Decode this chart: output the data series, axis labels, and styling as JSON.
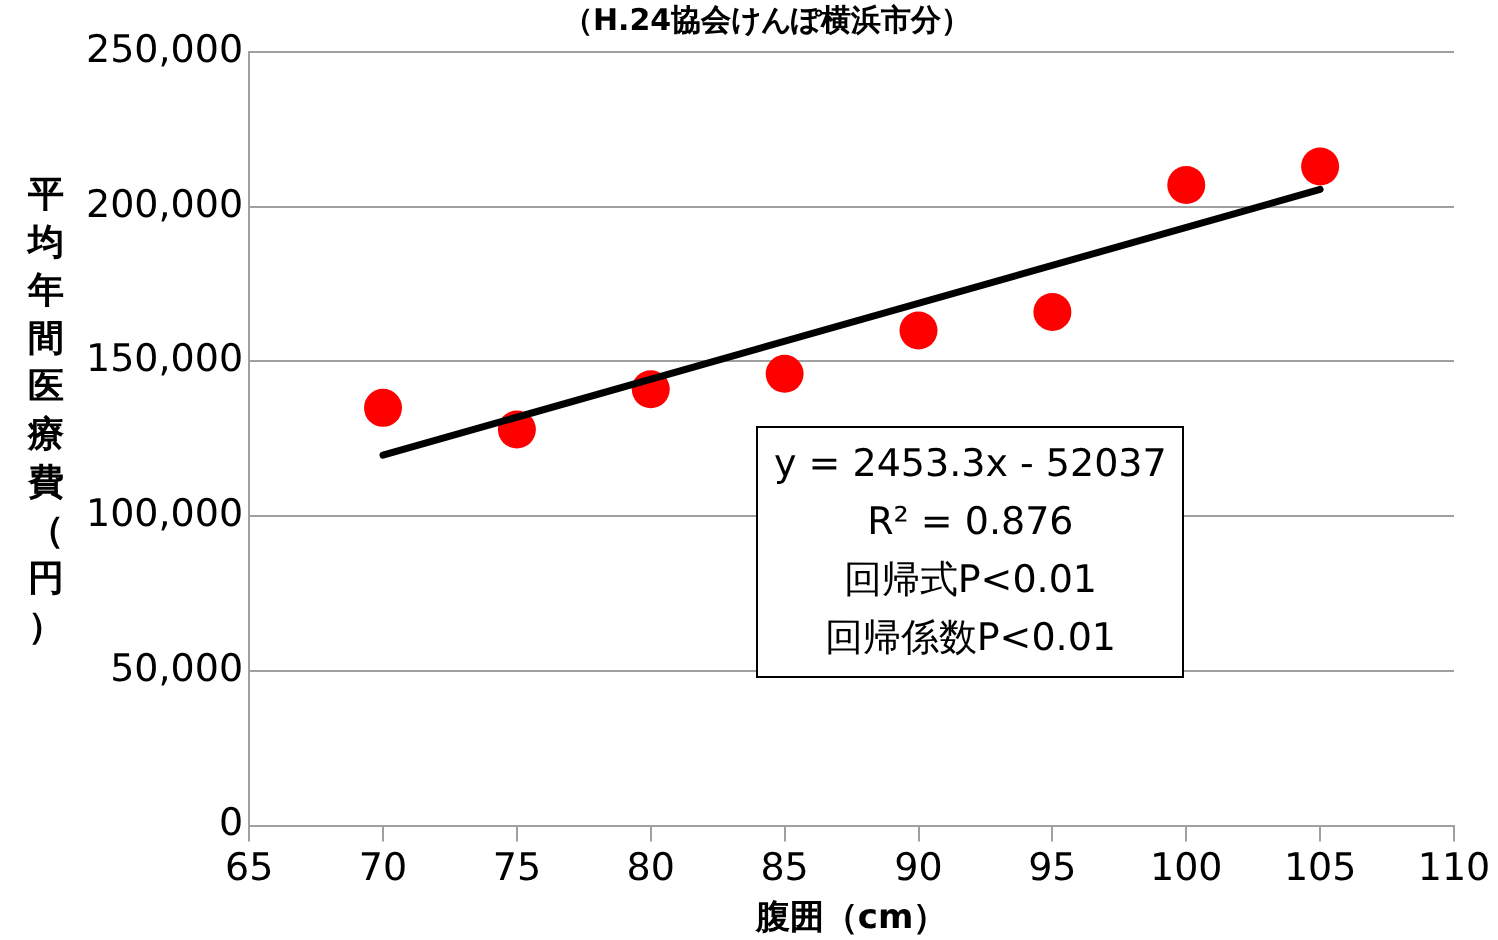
{
  "chart_data": {
    "type": "scatter",
    "title": "（H.24協会けんぽ横浜市分）",
    "xlabel": "腹囲（cm）",
    "ylabel": "平均年間医療費（円）",
    "xlim": [
      65,
      110
    ],
    "xticks": [
      65,
      70,
      75,
      80,
      85,
      90,
      95,
      100,
      105,
      110
    ],
    "ylim": [
      0,
      250000
    ],
    "yticks": [
      {
        "value": 0,
        "label": "0"
      },
      {
        "value": 50000,
        "label": "50,000"
      },
      {
        "value": 100000,
        "label": "100,000"
      },
      {
        "value": 150000,
        "label": "150,000"
      },
      {
        "value": 200000,
        "label": "200,000"
      },
      {
        "value": 250000,
        "label": "250,000"
      }
    ],
    "grid": "y",
    "legend": false,
    "marker": "circle",
    "series": [
      {
        "type": "scatter",
        "color": "#ff0000",
        "x": [
          70,
          75,
          80,
          85,
          90,
          95,
          100,
          105
        ],
        "values": [
          135000,
          128000,
          141000,
          146000,
          160000,
          166000,
          207000,
          213000
        ]
      },
      {
        "type": "line",
        "marker": "none",
        "color": "#000000",
        "x": [
          70,
          105
        ],
        "values": [
          119700,
          205600
        ]
      }
    ],
    "annotations": [
      "y = 2453.3x - 52037",
      "R² = 0.876",
      "回帰式P<0.01",
      "回帰係数P<0.01"
    ]
  }
}
